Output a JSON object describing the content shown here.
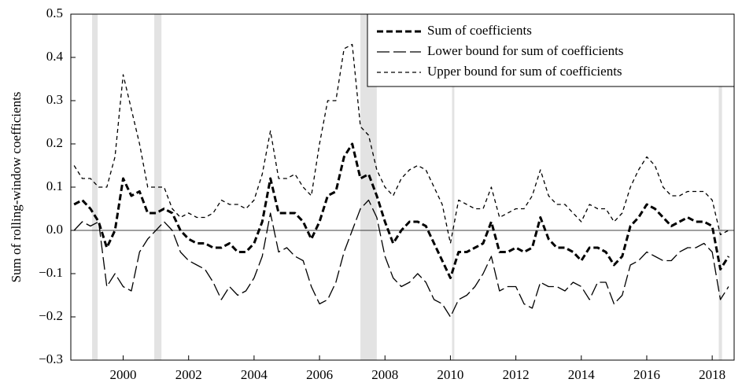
{
  "chart_data": {
    "type": "line",
    "y_label": "Sum of rolling-window coefficients",
    "x": [
      1998.5,
      1998.75,
      1999.0,
      1999.25,
      1999.5,
      1999.75,
      2000.0,
      2000.25,
      2000.5,
      2000.75,
      2001.0,
      2001.25,
      2001.5,
      2001.75,
      2002.0,
      2002.25,
      2002.5,
      2002.75,
      2003.0,
      2003.25,
      2003.5,
      2003.75,
      2004.0,
      2004.25,
      2004.5,
      2004.75,
      2005.0,
      2005.25,
      2005.5,
      2005.75,
      2006.0,
      2006.25,
      2006.5,
      2006.75,
      2007.0,
      2007.25,
      2007.5,
      2007.75,
      2008.0,
      2008.25,
      2008.5,
      2008.75,
      2009.0,
      2009.25,
      2009.5,
      2009.75,
      2010.0,
      2010.25,
      2010.5,
      2010.75,
      2011.0,
      2011.25,
      2011.5,
      2011.75,
      2012.0,
      2012.25,
      2012.5,
      2012.75,
      2013.0,
      2013.25,
      2013.5,
      2013.75,
      2014.0,
      2014.25,
      2014.5,
      2014.75,
      2015.0,
      2015.25,
      2015.5,
      2015.75,
      2016.0,
      2016.25,
      2016.5,
      2016.75,
      2017.0,
      2017.25,
      2017.5,
      2017.75,
      2018.0,
      2018.25,
      2018.5
    ],
    "series": [
      {
        "name": "Sum of coefficients",
        "color": "#000000",
        "line_style": "thick-dash",
        "values": [
          0.06,
          0.07,
          0.05,
          0.02,
          -0.04,
          0.0,
          0.12,
          0.08,
          0.09,
          0.04,
          0.04,
          0.05,
          0.04,
          0.0,
          -0.02,
          -0.03,
          -0.03,
          -0.04,
          -0.04,
          -0.03,
          -0.05,
          -0.05,
          -0.03,
          0.02,
          0.12,
          0.04,
          0.04,
          0.04,
          0.02,
          -0.02,
          0.02,
          0.08,
          0.09,
          0.17,
          0.2,
          0.12,
          0.13,
          0.08,
          0.02,
          -0.03,
          0.0,
          0.02,
          0.02,
          0.01,
          -0.03,
          -0.07,
          -0.11,
          -0.05,
          -0.05,
          -0.04,
          -0.03,
          0.02,
          -0.05,
          -0.05,
          -0.04,
          -0.05,
          -0.04,
          0.03,
          -0.02,
          -0.04,
          -0.04,
          -0.05,
          -0.07,
          -0.04,
          -0.04,
          -0.05,
          -0.08,
          -0.06,
          0.01,
          0.03,
          0.06,
          0.05,
          0.03,
          0.01,
          0.02,
          0.03,
          0.02,
          0.02,
          0.01,
          -0.09,
          -0.06
        ]
      },
      {
        "name": "Lower bound for sum of coefficients",
        "color": "#000000",
        "line_style": "long-dash",
        "values": [
          0.0,
          0.02,
          0.01,
          0.02,
          -0.13,
          -0.1,
          -0.13,
          -0.14,
          -0.05,
          -0.02,
          0.0,
          0.02,
          0.0,
          -0.05,
          -0.07,
          -0.08,
          -0.09,
          -0.12,
          -0.16,
          -0.13,
          -0.15,
          -0.14,
          -0.11,
          -0.06,
          0.04,
          -0.05,
          -0.04,
          -0.06,
          -0.07,
          -0.13,
          -0.17,
          -0.16,
          -0.12,
          -0.05,
          0.0,
          0.05,
          0.07,
          0.03,
          -0.06,
          -0.11,
          -0.13,
          -0.12,
          -0.1,
          -0.12,
          -0.16,
          -0.17,
          -0.2,
          -0.16,
          -0.15,
          -0.13,
          -0.1,
          -0.06,
          -0.14,
          -0.13,
          -0.13,
          -0.17,
          -0.18,
          -0.12,
          -0.13,
          -0.13,
          -0.14,
          -0.12,
          -0.13,
          -0.16,
          -0.12,
          -0.12,
          -0.17,
          -0.15,
          -0.08,
          -0.07,
          -0.05,
          -0.06,
          -0.07,
          -0.07,
          -0.05,
          -0.04,
          -0.04,
          -0.03,
          -0.05,
          -0.16,
          -0.13
        ]
      },
      {
        "name": "Upper bound for sum of coefficients",
        "color": "#000000",
        "line_style": "short-dash",
        "values": [
          0.15,
          0.12,
          0.12,
          0.1,
          0.1,
          0.17,
          0.36,
          0.28,
          0.2,
          0.1,
          0.1,
          0.1,
          0.05,
          0.03,
          0.04,
          0.03,
          0.03,
          0.04,
          0.07,
          0.06,
          0.06,
          0.05,
          0.07,
          0.13,
          0.23,
          0.12,
          0.12,
          0.13,
          0.1,
          0.08,
          0.2,
          0.3,
          0.3,
          0.42,
          0.43,
          0.24,
          0.22,
          0.14,
          0.1,
          0.08,
          0.12,
          0.14,
          0.15,
          0.14,
          0.1,
          0.06,
          -0.03,
          0.07,
          0.06,
          0.05,
          0.05,
          0.1,
          0.03,
          0.04,
          0.05,
          0.05,
          0.08,
          0.14,
          0.08,
          0.06,
          0.06,
          0.04,
          0.02,
          0.06,
          0.05,
          0.05,
          0.02,
          0.04,
          0.1,
          0.14,
          0.17,
          0.15,
          0.1,
          0.08,
          0.08,
          0.09,
          0.09,
          0.09,
          0.07,
          -0.01,
          0.0
        ]
      }
    ],
    "shaded_regions": [
      [
        1999.05,
        1999.22
      ],
      [
        2000.95,
        2001.17
      ],
      [
        2007.25,
        2007.75
      ],
      [
        2010.05,
        2010.12
      ],
      [
        2018.2,
        2018.3
      ]
    ],
    "shade_color": "#e3e3e3",
    "xlim": [
      1998.4,
      2018.67
    ],
    "xticks": [
      2000,
      2002,
      2004,
      2006,
      2008,
      2010,
      2012,
      2014,
      2016,
      2018
    ],
    "ylim": [
      -0.3,
      0.5
    ],
    "yticks": [
      {
        "value": -0.3,
        "label": "−0.3"
      },
      {
        "value": -0.2,
        "label": "−0.2"
      },
      {
        "value": -0.1,
        "label": "−0.1"
      },
      {
        "value": 0,
        "label": "0.0"
      },
      0.1,
      0.2,
      0.3,
      0.4,
      0.5
    ],
    "zero_line": true,
    "legend": "upper right"
  }
}
